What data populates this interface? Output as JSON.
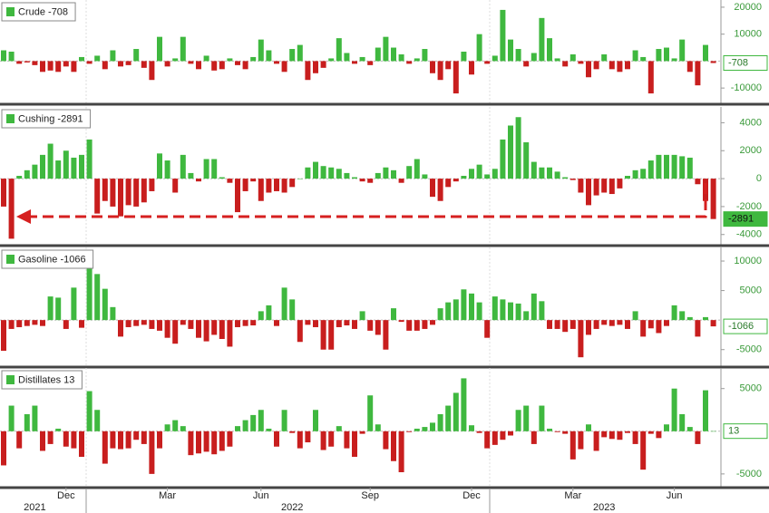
{
  "chart_data": [
    {
      "type": "bar",
      "name": "Crude",
      "color_up": "#3fb83f",
      "color_down": "#c81e1e",
      "ylim": [
        -15000,
        22000
      ],
      "yticks": [
        -10000,
        10000,
        20000
      ],
      "values": [
        4000,
        3500,
        -1000,
        -500,
        -1500,
        -4000,
        -3500,
        -4000,
        -2000,
        -4000,
        1500,
        -1000,
        2000,
        -3000,
        4000,
        -2000,
        -1500,
        4500,
        -2500,
        -7000,
        9000,
        -2000,
        1000,
        9000,
        -1000,
        -3000,
        2000,
        -3500,
        -3000,
        1000,
        -1500,
        -3000,
        1500,
        8000,
        4000,
        -1000,
        -4000,
        4500,
        6000,
        -7000,
        -4500,
        -2500,
        1000,
        8500,
        3000,
        -1000,
        1500,
        -1500,
        5000,
        9000,
        5000,
        2500,
        -1000,
        1000,
        4500,
        -4500,
        -7000,
        -3000,
        -12000,
        3500,
        -5000,
        10000,
        -1000,
        2000,
        19000,
        8000,
        4500,
        -2000,
        3000,
        16000,
        8500,
        1000,
        -2000,
        2500,
        -1000,
        -6000,
        -3000,
        2500,
        -3000,
        -4000,
        -3000,
        4000,
        1500,
        -12000,
        4500,
        5000,
        1000,
        8000,
        -4000,
        -9000,
        6000,
        -708
      ]
    },
    {
      "type": "bar",
      "name": "Cushing",
      "color_up": "#3fb83f",
      "color_down": "#c81e1e",
      "ylim": [
        -4600,
        5000
      ],
      "yticks": [
        -4000,
        -2000,
        0,
        2000,
        4000
      ],
      "values": [
        -2000,
        -4300,
        200,
        600,
        1000,
        1700,
        2500,
        1300,
        2000,
        1500,
        1700,
        2800,
        -2500,
        -1600,
        -2000,
        -2700,
        -1900,
        -2000,
        -1700,
        -900,
        1800,
        1300,
        -1000,
        1700,
        400,
        -200,
        1400,
        1400,
        100,
        -300,
        -2400,
        -900,
        -200,
        -1600,
        -1000,
        -900,
        -1000,
        -600,
        0,
        800,
        1200,
        900,
        800,
        700,
        400,
        100,
        -200,
        -300,
        400,
        800,
        600,
        -300,
        900,
        1400,
        300,
        -1300,
        -1600,
        -600,
        -200,
        200,
        700,
        1000,
        300,
        700,
        2800,
        3800,
        4400,
        2600,
        1200,
        800,
        800,
        500,
        100,
        -100,
        -1000,
        -1900,
        -1200,
        -1000,
        -1100,
        -700,
        200,
        600,
        700,
        1300,
        1700,
        1700,
        1700,
        1600,
        1500,
        -400,
        -1600,
        -2891
      ]
    },
    {
      "type": "bar",
      "name": "Gasoline",
      "color_up": "#3fb83f",
      "color_down": "#c81e1e",
      "ylim": [
        -7500,
        12000
      ],
      "yticks": [
        -5000,
        5000,
        10000
      ],
      "values": [
        -5200,
        -1500,
        -1200,
        -1000,
        -800,
        -1000,
        4000,
        3800,
        -1500,
        5500,
        -1300,
        9200,
        7800,
        5300,
        2200,
        -2800,
        -1200,
        -1000,
        -800,
        -1500,
        -1800,
        -3000,
        -4000,
        -800,
        -1500,
        -3000,
        -3600,
        -2500,
        -3200,
        -4500,
        -1200,
        -1000,
        -900,
        1500,
        2500,
        -1000,
        5500,
        3500,
        -3700,
        -800,
        -1200,
        -5000,
        -5000,
        -1200,
        -900,
        -1500,
        1500,
        -1800,
        -2500,
        -5000,
        2000,
        -300,
        -1800,
        -1800,
        -1500,
        -800,
        2000,
        3000,
        3500,
        5200,
        4500,
        3000,
        -3000,
        4000,
        3500,
        3000,
        2800,
        1500,
        4500,
        3200,
        -1500,
        -1500,
        -2000,
        -1500,
        -6300,
        -2500,
        -1500,
        -800,
        -1000,
        -800,
        -1500,
        1500,
        -2800,
        -1400,
        -2200,
        -1000,
        2500,
        1500,
        500,
        -2800,
        500,
        -1066
      ]
    },
    {
      "type": "bar",
      "name": "Distillates",
      "color_up": "#3fb83f",
      "color_down": "#c81e1e",
      "ylim": [
        -6500,
        7200
      ],
      "yticks": [
        -5000,
        5000
      ],
      "values": [
        -4000,
        3000,
        -2000,
        2000,
        3000,
        -2300,
        -1500,
        300,
        -1800,
        -2000,
        -3000,
        4700,
        2500,
        -3800,
        -2000,
        -2100,
        -2000,
        -1000,
        -1500,
        -5000,
        -2000,
        800,
        1300,
        600,
        -2800,
        -2600,
        -2400,
        -2700,
        -2300,
        -1800,
        600,
        1300,
        1900,
        2500,
        300,
        -1800,
        2500,
        -200,
        -2000,
        -1300,
        2500,
        -2200,
        -1800,
        600,
        -2000,
        -3000,
        -300,
        4200,
        800,
        -2100,
        -3500,
        -4800,
        -100,
        300,
        500,
        1000,
        2000,
        3000,
        4500,
        6200,
        700,
        -200,
        -2000,
        -1600,
        -1000,
        -500,
        2500,
        3000,
        -1500,
        3000,
        300,
        -100,
        -300,
        -3300,
        -2100,
        800,
        -2300,
        -700,
        -900,
        -1000,
        -200,
        -1500,
        -4500,
        -300,
        -800,
        800,
        5000,
        2000,
        500,
        -1500,
        4800,
        13
      ],
      "categories": [
        null,
        null,
        null,
        null,
        null,
        null,
        null,
        null,
        "Dec",
        null,
        null,
        null,
        null,
        null,
        null,
        null,
        null,
        null,
        null,
        null,
        null,
        "Mar",
        null,
        null,
        null,
        null,
        null,
        null,
        null,
        null,
        null,
        null,
        null,
        "Jun",
        null,
        null,
        null,
        null,
        null,
        null,
        null,
        null,
        null,
        null,
        null,
        null,
        null,
        "Sep",
        null,
        null,
        null,
        null,
        null,
        null,
        null,
        null,
        null,
        null,
        null,
        null,
        "Dec",
        null,
        null,
        null,
        null,
        null,
        null,
        null,
        null,
        null,
        null,
        null,
        null,
        "Mar",
        null,
        null,
        null,
        null,
        null,
        null,
        null,
        null,
        null,
        null,
        null,
        null,
        "Jun",
        null,
        null,
        null,
        null,
        null
      ],
      "x_years": [
        null,
        null,
        null,
        null,
        "2021",
        null,
        null,
        null,
        null,
        null,
        null,
        null,
        null,
        null,
        null,
        null,
        null,
        null,
        null,
        null,
        null,
        null,
        null,
        null,
        null,
        null,
        null,
        null,
        null,
        null,
        null,
        null,
        null,
        null,
        null,
        null,
        null,
        "2022",
        null,
        null,
        null,
        null,
        null,
        null,
        null,
        null,
        null,
        null,
        null,
        null,
        null,
        null,
        null,
        null,
        null,
        null,
        null,
        null,
        null,
        null,
        null,
        null,
        null,
        null,
        null,
        null,
        null,
        null,
        null,
        null,
        null,
        null,
        null,
        null,
        null,
        null,
        null,
        "2023",
        null,
        null,
        null,
        null,
        null,
        null,
        null,
        null,
        null,
        null,
        null,
        null,
        null,
        null
      ]
    }
  ]
}
